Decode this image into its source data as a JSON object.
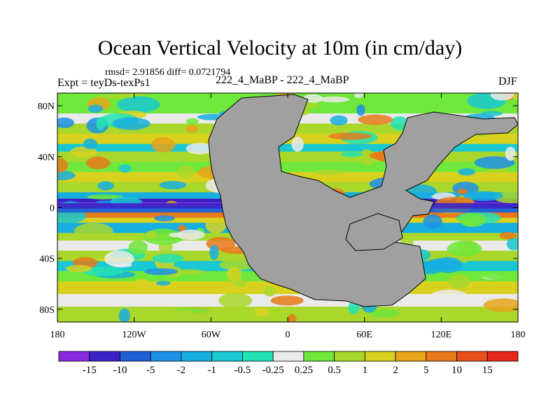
{
  "chart_data": {
    "type": "heatmap",
    "title": "Ocean Vertical Velocity at 10m (in cm/day)",
    "subtitle": "rmsd= 2.91856 diff= 0.0721794",
    "left_label": "Expt = teyDs-texPs1",
    "center_label": "222_4_MaBP - 222_4_MaBP",
    "right_label": "DJF",
    "x_ticks": [
      "180",
      "120W",
      "60W",
      "0",
      "60E",
      "120E",
      "180"
    ],
    "x_values": [
      -180,
      -120,
      -60,
      0,
      60,
      120,
      180
    ],
    "y_ticks": [
      "80N",
      "40N",
      "0",
      "40S",
      "80S"
    ],
    "y_values": [
      80,
      40,
      0,
      -40,
      -80
    ],
    "xlim": [
      -180,
      180
    ],
    "ylim": [
      -90,
      90
    ],
    "colorbar": {
      "labels": [
        "-15",
        "-10",
        "-5",
        "-2",
        "-1",
        "-0.5",
        "-0.25",
        "0.25",
        "0.5",
        "1",
        "2",
        "5",
        "10",
        "15"
      ],
      "colors": [
        "#8a2be2",
        "#3a22c8",
        "#1f5fd6",
        "#1e90e8",
        "#17aee0",
        "#19c8d2",
        "#21e3b6",
        "#eaeaea",
        "#6ee83a",
        "#a9d82a",
        "#d8d21e",
        "#e8a41a",
        "#e87a1a",
        "#e8501a",
        "#e8281a"
      ]
    },
    "land_color": "#a0a0a0"
  }
}
